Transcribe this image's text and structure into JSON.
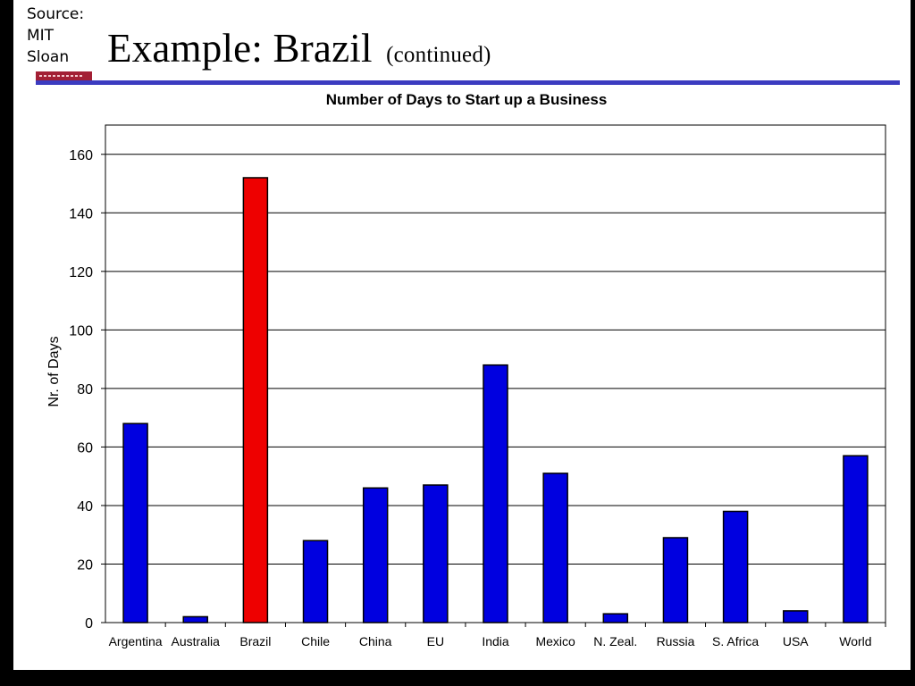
{
  "source_note": "Source: MIT Sloan",
  "slide": {
    "title": "Example: Brazil",
    "subtitle": "(continued)"
  },
  "colors": {
    "bar": "#0000e0",
    "highlight_bar": "#ee0000",
    "title_rule": "#3b3bc0",
    "logo": "#a31f34"
  },
  "chart_data": {
    "type": "bar",
    "title": "Number of Days to Start up a Business",
    "xlabel": "",
    "ylabel": "Nr. of Days",
    "ylim": [
      0,
      170
    ],
    "yticks": [
      0,
      20,
      40,
      60,
      80,
      100,
      120,
      140,
      160
    ],
    "grid": true,
    "categories": [
      "Argentina",
      "Australia",
      "Brazil",
      "Chile",
      "China",
      "EU",
      "India",
      "Mexico",
      "N. Zeal.",
      "Russia",
      "S. Africa",
      "USA",
      "World"
    ],
    "values": [
      68,
      2,
      152,
      28,
      46,
      47,
      88,
      51,
      3,
      29,
      38,
      4,
      57
    ],
    "highlight_category": "Brazil"
  }
}
